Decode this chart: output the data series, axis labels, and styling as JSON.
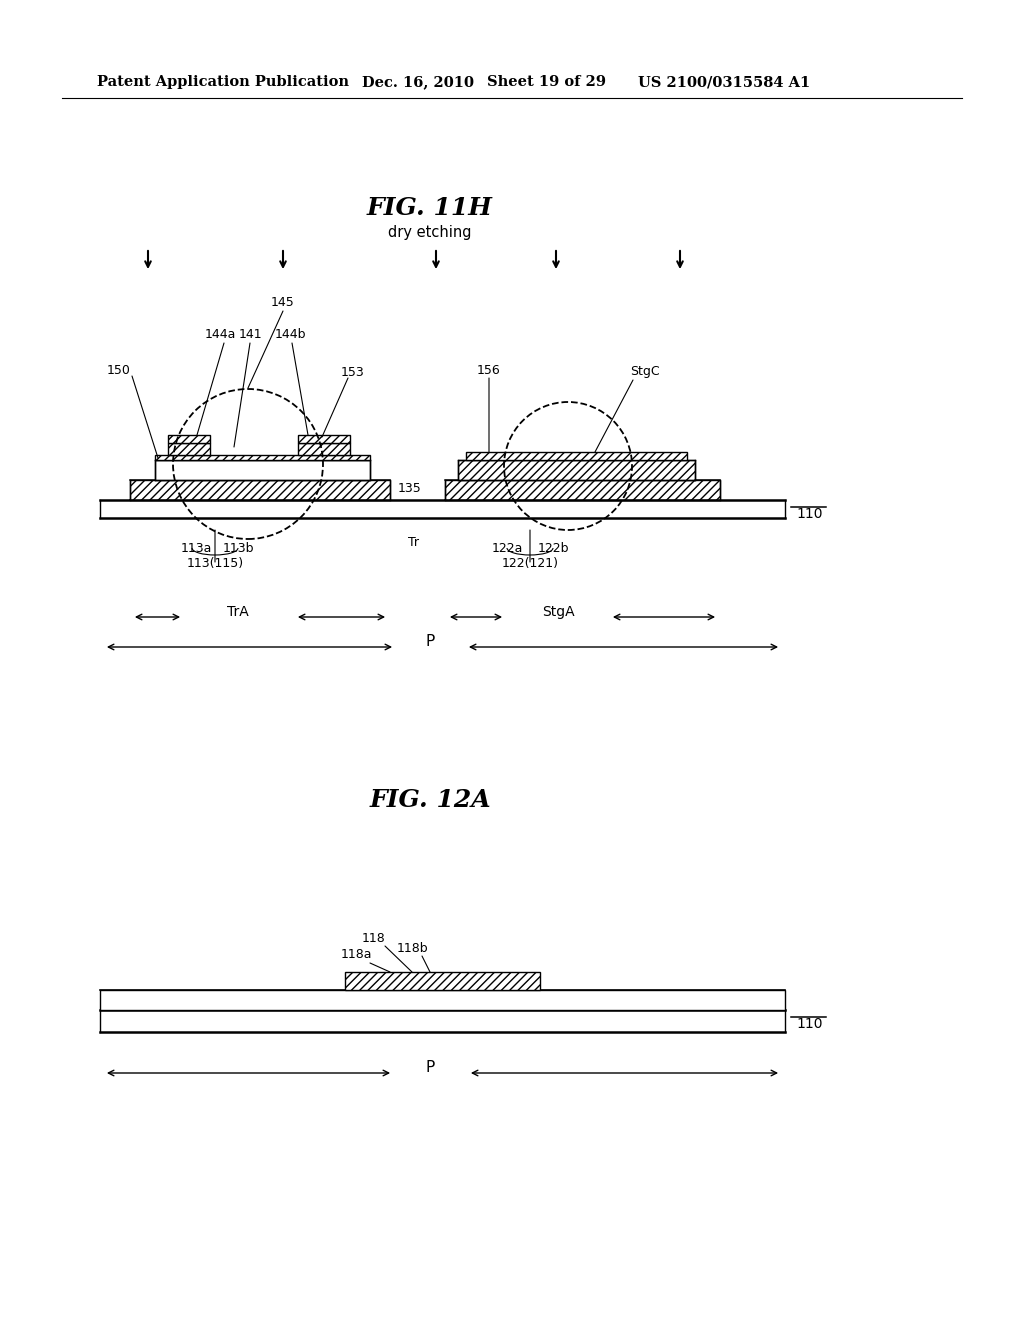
{
  "bg_color": "#ffffff",
  "header_left": "Patent Application Publication",
  "header_mid1": "Dec. 16, 2010",
  "header_mid2": "Sheet 19 of 29",
  "header_right": "US 2100/0315584 A1",
  "fig11h_title": "FIG. 11H",
  "fig11h_sub": "dry etching",
  "fig12a_title": "FIG. 12A"
}
